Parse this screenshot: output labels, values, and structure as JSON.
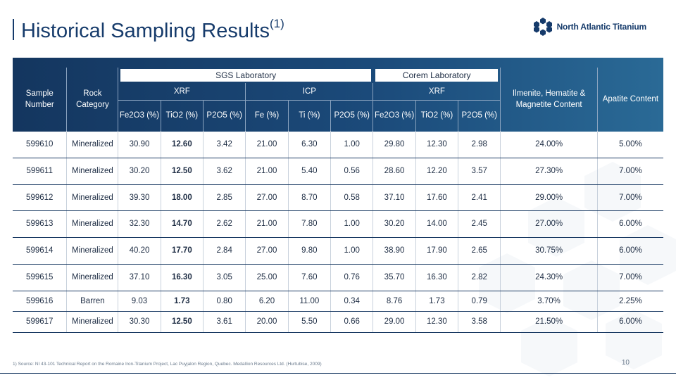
{
  "title": {
    "text": "Historical Sampling Results",
    "sup": "(1)"
  },
  "logo": {
    "text": "North Atlantic Titanium",
    "icon": "snowflake-logo-icon"
  },
  "table": {
    "headers": {
      "sample": "Sample Number",
      "rock": "Rock Category",
      "sgs_lab": "SGS Laboratory",
      "corem_lab": "Corem Laboratory",
      "sgs_xrf": "XRF",
      "sgs_icp": "ICP",
      "corem_xrf": "XRF",
      "ilmenite": "Ilmenite, Hematite & Magnetite Content",
      "apatite": "Apatite Content",
      "cols": [
        "Fe2O3 (%)",
        "TiO2 (%)",
        "P2O5 (%)",
        "Fe (%)",
        "Ti (%)",
        "P2O5 (%)",
        "Fe2O3 (%)",
        "TiO2 (%)",
        "P2O5 (%)"
      ]
    },
    "rows": [
      [
        "599610",
        "Mineralized",
        "30.90",
        "12.60",
        "3.42",
        "21.00",
        "6.30",
        "1.00",
        "29.80",
        "12.30",
        "2.98",
        "24.00%",
        "5.00%"
      ],
      [
        "599611",
        "Mineralized",
        "30.20",
        "12.50",
        "3.62",
        "21.00",
        "5.40",
        "0.56",
        "28.60",
        "12.20",
        "3.57",
        "27.30%",
        "7.00%"
      ],
      [
        "599612",
        "Mineralized",
        "39.30",
        "18.00",
        "2.85",
        "27.00",
        "8.70",
        "0.58",
        "37.10",
        "17.60",
        "2.41",
        "29.00%",
        "7.00%"
      ],
      [
        "599613",
        "Mineralized",
        "32.30",
        "14.70",
        "2.62",
        "21.00",
        "7.80",
        "1.00",
        "30.20",
        "14.00",
        "2.45",
        "27.00%",
        "6.00%"
      ],
      [
        "599614",
        "Mineralized",
        "40.20",
        "17.70",
        "2.84",
        "27.00",
        "9.80",
        "1.00",
        "38.90",
        "17.90",
        "2.65",
        "30.75%",
        "6.00%"
      ],
      [
        "599615",
        "Mineralized",
        "37.10",
        "16.30",
        "3.05",
        "25.00",
        "7.60",
        "0.76",
        "35.70",
        "16.30",
        "2.82",
        "24.30%",
        "7.00%"
      ],
      [
        "599616",
        "Barren",
        "9.03",
        "1.73",
        "0.80",
        "6.20",
        "11.00",
        "0.34",
        "8.76",
        "1.73",
        "0.79",
        "3.70%",
        "2.25%"
      ],
      [
        "599617",
        "Mineralized",
        "30.30",
        "12.50",
        "3.61",
        "20.00",
        "5.50",
        "0.66",
        "29.00",
        "12.30",
        "3.58",
        "21.50%",
        "6.00%"
      ]
    ]
  },
  "footnote": "1)  Source: NI 43-101 Technical Report on the Romaine Iron-Titanium Project, Lac Puyjalon Region, Quebec. Medallion Resources Ltd. (Hurtubise, 2009)",
  "page_number": "10",
  "colors": {
    "navy": "#163b6b",
    "header_start": "#14365f",
    "header_end": "#2a6a96"
  }
}
